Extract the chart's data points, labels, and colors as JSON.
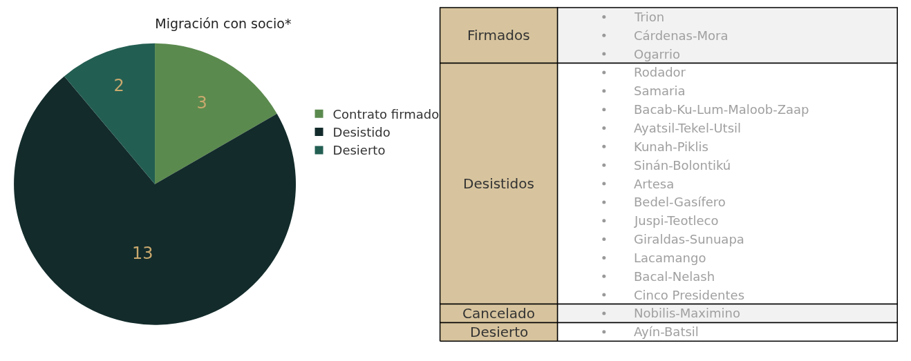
{
  "chart_data": [
    {
      "type": "pie",
      "title": "Migración con socio*",
      "categories": [
        "Contrato firmado",
        "Desistido",
        "Desierto"
      ],
      "values": [
        3,
        13,
        2
      ],
      "colors": [
        "#5b8a4e",
        "#132b2b",
        "#235e52"
      ],
      "data_labels": true,
      "legend": "right"
    },
    {
      "type": "other",
      "y_categories": [
        "Firmados",
        "Desistidos",
        "Cancelado",
        "Desierto"
      ],
      "cell_labels": [
        [
          "Trion",
          "Cárdenas-Mora",
          "Ogarrio"
        ],
        [
          "Rodador",
          "Samaria",
          "Bacab-Ku-Lum-Maloob-Zaap",
          "Ayatsil-Tekel-Utsil",
          "Kunah-Piklis",
          "Sinán-Bolontikú",
          "Artesa",
          "Bedel-Gasífero",
          "Juspi-Teotleco",
          "Giraldas-Sunuapa",
          "Lacamango",
          "Bacal-Nelash",
          "Cinco Presidentes"
        ],
        [
          "Nobilis-Maximino"
        ],
        [
          "Ayín-Batsil"
        ]
      ]
    }
  ]
}
